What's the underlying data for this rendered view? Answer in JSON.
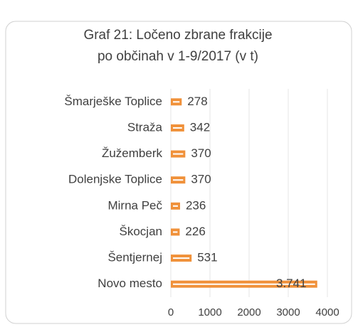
{
  "chart_data": {
    "type": "hbar",
    "title": "Graf 21: Ločeno zbrane frakcije",
    "subtitle": "po občinah v 1-9/2017 (v t)",
    "categories": [
      "Šmarješke Toplice",
      "Straža",
      "Žužemberk",
      "Dolenjske Toplice",
      "Mirna Peč",
      "Škocjan",
      "Šentjernej",
      "Novo mesto"
    ],
    "values": [
      278,
      342,
      370,
      370,
      236,
      226,
      531,
      3741
    ],
    "value_labels": [
      "278",
      "342",
      "370",
      "370",
      "236",
      "226",
      "531",
      "3.741"
    ],
    "color": "#f0913a",
    "xlim": [
      0,
      4000
    ],
    "xticks": [
      0,
      1000,
      2000,
      3000,
      4000
    ],
    "grid": true
  }
}
